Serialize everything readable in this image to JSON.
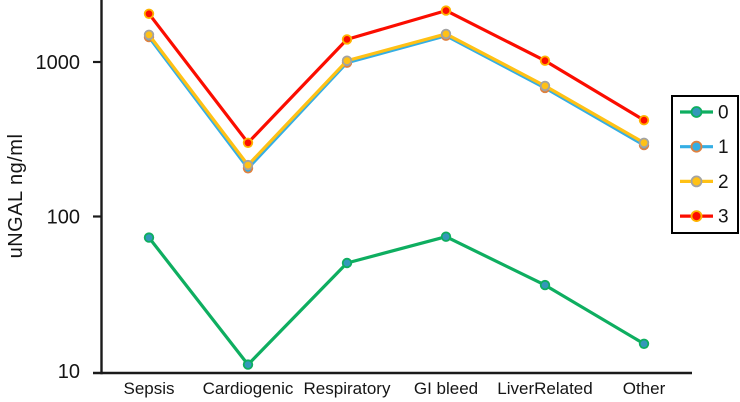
{
  "chart_data": {
    "type": "line",
    "title": "",
    "xlabel": "",
    "ylabel": "uNGAL ng/ml",
    "y_scale": "log",
    "y_ticks": [
      10,
      100,
      1000
    ],
    "ylim": [
      10,
      2400
    ],
    "grid": false,
    "legend_position": "right",
    "legend_border": true,
    "axis_color": "#1b1b1b",
    "text_color": "#151515",
    "categories": [
      "Sepsis",
      "Cardiogenic",
      "Respiratory",
      "GI bleed",
      "LiverRelated",
      "Other"
    ],
    "series": [
      {
        "name": "0",
        "color": "#0eae60",
        "marker_fill": "#3498ba",
        "marker_edge": "#0eae60",
        "values": [
          73,
          11,
          50,
          74,
          36,
          15
        ]
      },
      {
        "name": "1",
        "color": "#35aee4",
        "marker_fill": "#35aee4",
        "marker_edge": "#e0813f",
        "values": [
          1450,
          205,
          990,
          1480,
          680,
          290
        ]
      },
      {
        "name": "2",
        "color": "#ffc115",
        "marker_fill": "#ffc115",
        "marker_edge": "#a3a3a3",
        "values": [
          1500,
          215,
          1020,
          1520,
          700,
          300
        ]
      },
      {
        "name": "3",
        "color": "#fb0d00",
        "marker_fill": "#fb0d00",
        "marker_edge": "#ffb400",
        "values": [
          2050,
          300,
          1400,
          2150,
          1020,
          420
        ]
      }
    ]
  }
}
